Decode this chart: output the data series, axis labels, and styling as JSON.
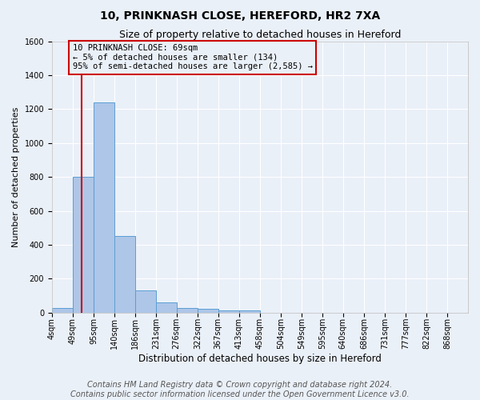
{
  "title1": "10, PRINKNASH CLOSE, HEREFORD, HR2 7XA",
  "title2": "Size of property relative to detached houses in Hereford",
  "xlabel": "Distribution of detached houses by size in Hereford",
  "ylabel": "Number of detached properties",
  "footer": "Contains HM Land Registry data © Crown copyright and database right 2024.\nContains public sector information licensed under the Open Government Licence v3.0.",
  "bin_edges": [
    4,
    49,
    95,
    140,
    186,
    231,
    276,
    322,
    367,
    413,
    458,
    504,
    549,
    595,
    640,
    686,
    731,
    777,
    822,
    868,
    913
  ],
  "bar_heights": [
    25,
    800,
    1240,
    450,
    130,
    60,
    25,
    20,
    15,
    15,
    0,
    0,
    0,
    0,
    0,
    0,
    0,
    0,
    0,
    0
  ],
  "bar_color": "#aec6e8",
  "bar_edge_color": "#5a9fd4",
  "property_size": 69,
  "property_label": "10 PRINKNASH CLOSE: 69sqm",
  "annotation_line1": "← 5% of detached houses are smaller (134)",
  "annotation_line2": "95% of semi-detached houses are larger (2,585) →",
  "annotation_box_color": "#cc0000",
  "vline_color": "#cc0000",
  "ylim": [
    0,
    1600
  ],
  "yticks": [
    0,
    200,
    400,
    600,
    800,
    1000,
    1200,
    1400,
    1600
  ],
  "background_color": "#eaf0f8",
  "grid_color": "#ffffff",
  "title1_fontsize": 10,
  "title2_fontsize": 9,
  "xlabel_fontsize": 8.5,
  "ylabel_fontsize": 8,
  "tick_fontsize": 7,
  "footer_fontsize": 7,
  "annot_fontsize": 7.5
}
